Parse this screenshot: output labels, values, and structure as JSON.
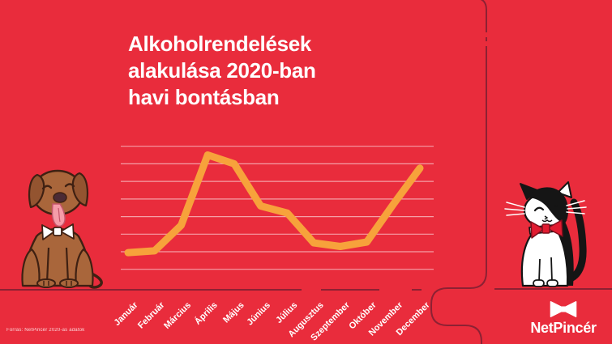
{
  "title": {
    "lines": [
      "Alkoholrendelések",
      "alakulása 2020-ban",
      "havi bontásban"
    ]
  },
  "source_note": "Forrás: NetPincér 2020-as adatok",
  "brand": {
    "name": "NetPincér",
    "logo_icon": "bowtie-icon"
  },
  "illustrations": {
    "left": "brown-dog-with-white-bowtie",
    "right": "tuxedo-cat-with-red-bowtie"
  },
  "colors": {
    "background": "#E92C3C",
    "accent_line": "#F7A23B",
    "decor_path": "#8D2133",
    "gridline": "rgba(255,255,255,0.55)",
    "text": "#FFFFFF"
  },
  "chart_data": {
    "type": "line",
    "title": "Alkoholrendelések alakulása 2020-ban havi bontásban",
    "categories": [
      "Január",
      "Február",
      "Március",
      "Április",
      "Május",
      "Június",
      "Július",
      "Augusztus",
      "Szeptember",
      "Október",
      "November",
      "December"
    ],
    "series": [
      {
        "name": "Alkoholrendelések",
        "values": [
          0.95,
          1.05,
          2.5,
          6.5,
          6.0,
          3.6,
          3.2,
          1.5,
          1.3,
          1.55,
          3.7,
          5.75
        ]
      }
    ],
    "xlabel": "",
    "ylabel": "",
    "ylim": [
      0,
      7
    ],
    "value_units": "relative units (no y-axis labels shown; bottom gridline = 0, top gridline = 7)",
    "gridlines": {
      "count": 8,
      "orientation": "horizontal",
      "visible": true
    },
    "legend": "none",
    "line_color": "#F7A23B"
  }
}
